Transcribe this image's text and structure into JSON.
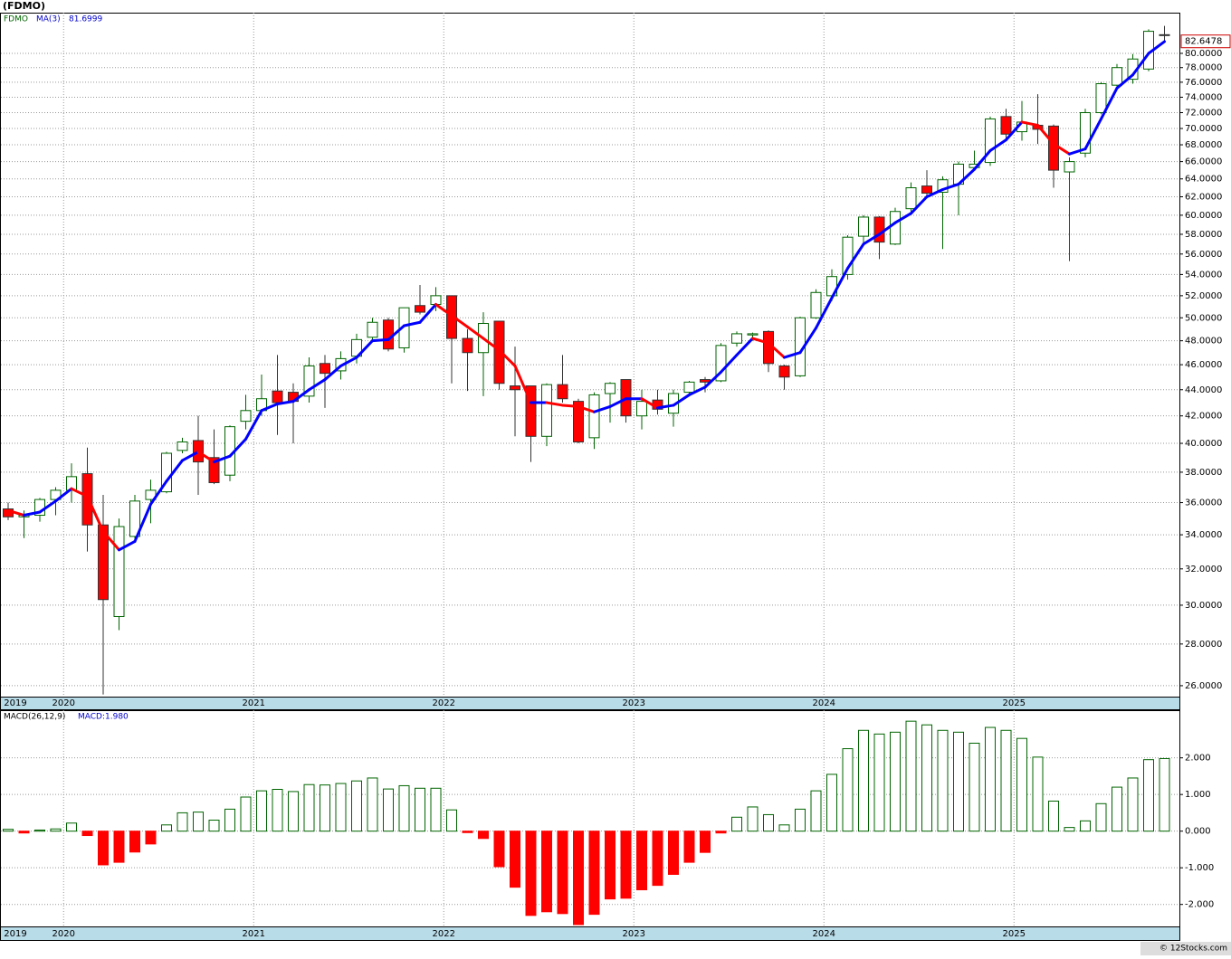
{
  "title": "(FDMO)",
  "credit": "© 12Stocks.com",
  "chart_data": [
    {
      "type": "candlestick",
      "log_scale": true,
      "grid": true,
      "categories": [
        "2019",
        null,
        null,
        null,
        "2020",
        null,
        null,
        null,
        null,
        null,
        null,
        null,
        null,
        null,
        null,
        null,
        "2021",
        null,
        null,
        null,
        null,
        null,
        null,
        null,
        null,
        null,
        null,
        null,
        "2022",
        null,
        null,
        null,
        null,
        null,
        null,
        null,
        null,
        null,
        null,
        null,
        "2023",
        null,
        null,
        null,
        null,
        null,
        null,
        null,
        null,
        null,
        null,
        null,
        "2024",
        null,
        null,
        null,
        null,
        null,
        null,
        null,
        null,
        null,
        null,
        null,
        "2025",
        null,
        null,
        null,
        null,
        null,
        null,
        null,
        null,
        null
      ],
      "series": [
        {
          "name": "FDMO",
          "up_color": "#006400",
          "down_color": "#ff0000",
          "last_label": "82.6478",
          "open": [
            35.6,
            35.1,
            35.2,
            36.2,
            36.8,
            37.9,
            34.6,
            29.4,
            33.9,
            36.2,
            36.7,
            39.5,
            40.2,
            39.0,
            37.8,
            41.6,
            42.4,
            43.9,
            43.8,
            43.5,
            46.1,
            45.5,
            46.7,
            48.3,
            49.8,
            47.4,
            51.1,
            51.2,
            52.0,
            48.2,
            47.0,
            49.7,
            44.3,
            44.3,
            40.5,
            44.4,
            43.1,
            40.4,
            43.7,
            44.8,
            42.0,
            43.2,
            42.2,
            43.8,
            44.8,
            44.7,
            47.8,
            48.5,
            48.8,
            45.9,
            45.1,
            50.0,
            52.0,
            54.0,
            57.8,
            59.8,
            57.0,
            60.7,
            63.2,
            62.5,
            63.4,
            65.3,
            65.9,
            71.5,
            69.6,
            70.4,
            70.3,
            64.8,
            67.0,
            72.0,
            75.6,
            76.4,
            77.8,
            82.7
          ],
          "high": [
            36.0,
            35.5,
            36.3,
            37.0,
            38.6,
            39.7,
            36.5,
            35.0,
            36.5,
            37.5,
            39.4,
            40.4,
            42.0,
            41.0,
            41.3,
            43.6,
            45.2,
            46.8,
            44.5,
            46.6,
            46.8,
            47.1,
            48.6,
            50.0,
            50.0,
            50.9,
            53.0,
            52.8,
            52.0,
            49.0,
            50.5,
            49.7,
            47.5,
            44.3,
            44.5,
            46.8,
            43.3,
            43.8,
            44.6,
            44.8,
            44.0,
            44.0,
            44.0,
            44.7,
            45.0,
            47.8,
            48.8,
            48.7,
            48.9,
            46.0,
            50.1,
            52.6,
            54.5,
            57.9,
            60.0,
            59.9,
            60.8,
            63.6,
            65.0,
            64.3,
            66.0,
            67.3,
            71.5,
            72.5,
            73.5,
            74.4,
            70.5,
            66.5,
            72.5,
            76.0,
            78.5,
            79.9,
            83.5,
            84.0
          ],
          "low": [
            34.9,
            33.8,
            34.8,
            35.2,
            36.0,
            33.0,
            25.6,
            28.7,
            33.7,
            34.7,
            36.6,
            39.3,
            36.5,
            37.2,
            37.4,
            41.0,
            42.0,
            40.6,
            40.0,
            43.0,
            42.6,
            44.8,
            46.1,
            47.9,
            47.1,
            47.0,
            50.3,
            50.6,
            44.5,
            43.9,
            43.5,
            44.0,
            40.5,
            38.7,
            39.8,
            43.0,
            40.0,
            39.6,
            41.5,
            41.5,
            41.0,
            42.1,
            41.2,
            43.6,
            43.8,
            44.6,
            47.5,
            48.0,
            45.4,
            44.0,
            45.0,
            49.9,
            51.5,
            53.5,
            57.0,
            55.5,
            56.9,
            60.4,
            62.0,
            56.5,
            60.0,
            65.0,
            65.5,
            68.5,
            68.5,
            68.1,
            63.0,
            55.3,
            66.5,
            71.8,
            75.2,
            75.8,
            77.5,
            81.5
          ],
          "close": [
            35.1,
            35.2,
            36.2,
            36.8,
            37.7,
            34.6,
            30.3,
            34.5,
            36.1,
            36.8,
            39.3,
            40.1,
            38.7,
            37.3,
            41.2,
            42.4,
            43.3,
            43.0,
            43.1,
            45.9,
            45.3,
            46.5,
            48.1,
            49.6,
            47.3,
            50.9,
            50.5,
            52.0,
            48.2,
            47.0,
            49.5,
            44.5,
            44.0,
            40.5,
            44.4,
            43.3,
            40.1,
            43.6,
            44.5,
            42.0,
            43.1,
            42.5,
            43.7,
            44.6,
            44.6,
            47.6,
            48.6,
            48.6,
            46.1,
            45.0,
            50.0,
            52.3,
            53.8,
            57.7,
            59.8,
            57.2,
            60.4,
            63.0,
            62.4,
            63.9,
            65.7,
            65.7,
            71.2,
            69.3,
            70.8,
            69.9,
            65.0,
            66.0,
            72.0,
            75.8,
            78.0,
            79.2,
            83.2,
            82.6478
          ]
        },
        {
          "name": "MA(3)",
          "up_color": "#0000ff",
          "down_color": "#ff0000",
          "last_label": "81.6999",
          "values": [
            35.5,
            35.2,
            35.4,
            36.1,
            36.9,
            36.4,
            34.2,
            33.1,
            33.6,
            35.9,
            37.4,
            38.8,
            39.4,
            38.7,
            39.1,
            40.3,
            42.4,
            42.9,
            43.1,
            44.0,
            44.8,
            45.9,
            46.6,
            48.0,
            48.1,
            49.3,
            49.6,
            51.2,
            50.2,
            49.2,
            48.2,
            47.2,
            45.9,
            43.0,
            43.0,
            42.8,
            42.7,
            42.3,
            42.7,
            43.3,
            43.3,
            42.6,
            42.8,
            43.6,
            44.2,
            45.4,
            46.8,
            48.2,
            47.8,
            46.6,
            47.0,
            49.1,
            51.8,
            54.6,
            57.0,
            58.0,
            59.2,
            60.2,
            62.0,
            62.8,
            63.4,
            65.1,
            67.3,
            68.6,
            70.8,
            70.4,
            68.1,
            66.9,
            67.5,
            71.2,
            75.2,
            77.0,
            80.0,
            81.6999
          ]
        }
      ],
      "ylim": [
        25.5,
        86
      ],
      "yticks": [
        {
          "value": 26,
          "label": "26.0000"
        },
        {
          "value": 28,
          "label": "28.0000"
        },
        {
          "value": 30,
          "label": "30.0000"
        },
        {
          "value": 32,
          "label": "32.0000"
        },
        {
          "value": 34,
          "label": "34.0000"
        },
        {
          "value": 36,
          "label": "36.0000"
        },
        {
          "value": 38,
          "label": "38.0000"
        },
        {
          "value": 40,
          "label": "40.0000"
        },
        {
          "value": 42,
          "label": "42.0000"
        },
        {
          "value": 44,
          "label": "44.0000"
        },
        {
          "value": 46,
          "label": "46.0000"
        },
        {
          "value": 48,
          "label": "48.0000"
        },
        {
          "value": 50,
          "label": "50.0000"
        },
        {
          "value": 52,
          "label": "52.0000"
        },
        {
          "value": 54,
          "label": "54.0000"
        },
        {
          "value": 56,
          "label": "56.0000"
        },
        {
          "value": 58,
          "label": "58.0000"
        },
        {
          "value": 60,
          "label": "60.0000"
        },
        {
          "value": 62,
          "label": "62.0000"
        },
        {
          "value": 64,
          "label": "64.0000"
        },
        {
          "value": 66,
          "label": "66.0000"
        },
        {
          "value": 68,
          "label": "68.0000"
        },
        {
          "value": 70,
          "label": "70.0000"
        },
        {
          "value": 72,
          "label": "72.0000"
        },
        {
          "value": 74,
          "label": "74.0000"
        },
        {
          "value": 76,
          "label": "76.0000"
        },
        {
          "value": 78,
          "label": "78.0000"
        },
        {
          "value": 80,
          "label": "80.0000"
        }
      ]
    },
    {
      "type": "bar",
      "grid": true,
      "categories": [
        "2019",
        null,
        null,
        null,
        "2020",
        null,
        null,
        null,
        null,
        null,
        null,
        null,
        null,
        null,
        null,
        null,
        "2021",
        null,
        null,
        null,
        null,
        null,
        null,
        null,
        null,
        null,
        null,
        null,
        "2022",
        null,
        null,
        null,
        null,
        null,
        null,
        null,
        null,
        null,
        null,
        null,
        "2023",
        null,
        null,
        null,
        null,
        null,
        null,
        null,
        null,
        null,
        null,
        null,
        "2024",
        null,
        null,
        null,
        null,
        null,
        null,
        null,
        null,
        null,
        null,
        null,
        "2025",
        null,
        null,
        null,
        null,
        null,
        null,
        null,
        null,
        null
      ],
      "series": [
        {
          "name": "MACD(26,12,9)",
          "last_label": "MACD:1.980",
          "up_color": "#006400",
          "down_color": "#ff0000",
          "values": [
            0.05,
            -0.05,
            0.03,
            0.06,
            0.22,
            -0.12,
            -0.92,
            -0.85,
            -0.57,
            -0.35,
            0.17,
            0.5,
            0.52,
            0.3,
            0.6,
            0.93,
            1.1,
            1.14,
            1.08,
            1.27,
            1.26,
            1.3,
            1.37,
            1.45,
            1.15,
            1.24,
            1.17,
            1.17,
            0.58,
            -0.04,
            -0.2,
            -0.97,
            -1.53,
            -2.3,
            -2.2,
            -2.25,
            -2.55,
            -2.27,
            -1.85,
            -1.83,
            -1.6,
            -1.48,
            -1.18,
            -0.85,
            -0.58,
            -0.05,
            0.38,
            0.66,
            0.45,
            0.17,
            0.6,
            1.1,
            1.55,
            2.25,
            2.75,
            2.65,
            2.7,
            3.0,
            2.9,
            2.75,
            2.7,
            2.4,
            2.83,
            2.75,
            2.53,
            2.02,
            0.82,
            0.1,
            0.28,
            0.75,
            1.2,
            1.45,
            1.95,
            1.98
          ]
        }
      ],
      "ylim": [
        -2.6,
        3.3
      ],
      "yticks": [
        {
          "value": -2,
          "label": "-2.000"
        },
        {
          "value": -1,
          "label": "-1.000"
        },
        {
          "value": 0,
          "label": "0.000"
        },
        {
          "value": 1,
          "label": "1.000"
        },
        {
          "value": 2,
          "label": "2.000"
        }
      ]
    }
  ]
}
